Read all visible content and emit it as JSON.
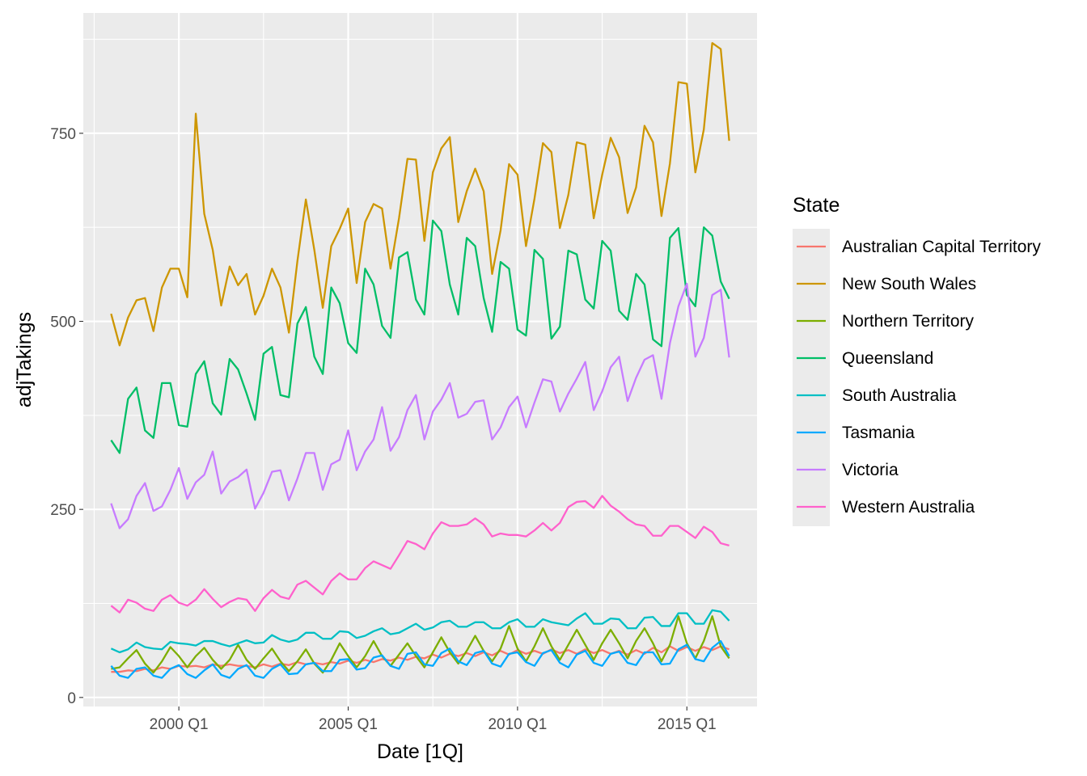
{
  "chart_data": {
    "type": "line",
    "xlabel": "Date [1Q]",
    "ylabel": "adjTakings",
    "x_start": "1998 Q1",
    "x_end": "2016 Q2",
    "x_ticks": [
      "2000 Q1",
      "2005 Q1",
      "2010 Q1",
      "2015 Q1"
    ],
    "y_ticks": [
      0,
      250,
      500,
      750
    ],
    "ylim": [
      -12,
      910
    ],
    "grid": true,
    "legend_title": "State",
    "legend_position": "right",
    "series": [
      {
        "name": "Australian Capital Territory",
        "color": "#F8766D",
        "values": [
          34,
          34,
          36,
          35,
          38,
          36,
          40,
          38,
          42,
          41,
          42,
          40,
          44,
          42,
          44,
          42,
          42,
          40,
          44,
          41,
          45,
          43,
          47,
          44,
          46,
          44,
          47,
          45,
          49,
          46,
          50,
          47,
          51,
          49,
          53,
          50,
          54,
          52,
          57,
          53,
          58,
          55,
          59,
          55,
          60,
          56,
          62,
          57,
          63,
          58,
          62,
          58,
          64,
          59,
          63,
          58,
          64,
          59,
          63,
          58,
          62,
          57,
          63,
          58,
          66,
          60,
          68,
          62,
          67,
          62,
          67,
          63,
          68,
          64
        ]
      },
      {
        "name": "New South Wales",
        "color": "#CD9600",
        "values": [
          510,
          468,
          505,
          528,
          531,
          487,
          545,
          570,
          570,
          532,
          776,
          643,
          595,
          521,
          573,
          548,
          563,
          509,
          534,
          570,
          545,
          485,
          580,
          662,
          595,
          518,
          600,
          623,
          650,
          551,
          632,
          656,
          650,
          570,
          637,
          716,
          715,
          607,
          698,
          730,
          745,
          632,
          673,
          703,
          673,
          563,
          621,
          709,
          695,
          600,
          663,
          737,
          725,
          624,
          668,
          738,
          735,
          637,
          695,
          744,
          718,
          644,
          678,
          760,
          738,
          640,
          710,
          818,
          816,
          698,
          755,
          870,
          862,
          740
        ]
      },
      {
        "name": "Northern Territory",
        "color": "#7CAE00",
        "values": [
          38,
          40,
          52,
          63,
          45,
          33,
          48,
          67,
          55,
          40,
          55,
          66,
          50,
          38,
          50,
          70,
          50,
          38,
          52,
          65,
          48,
          35,
          48,
          64,
          45,
          33,
          50,
          72,
          55,
          40,
          55,
          75,
          55,
          42,
          57,
          72,
          55,
          40,
          60,
          80,
          60,
          45,
          62,
          82,
          62,
          48,
          65,
          95,
          65,
          48,
          68,
          92,
          68,
          50,
          70,
          90,
          70,
          50,
          72,
          90,
          72,
          52,
          75,
          92,
          72,
          48,
          70,
          108,
          72,
          52,
          75,
          108,
          68,
          52
        ]
      },
      {
        "name": "Queensland",
        "color": "#00BE67",
        "values": [
          342,
          325,
          397,
          412,
          355,
          345,
          418,
          418,
          362,
          360,
          430,
          447,
          391,
          376,
          450,
          436,
          404,
          369,
          457,
          466,
          402,
          399,
          497,
          519,
          453,
          430,
          545,
          524,
          471,
          458,
          570,
          549,
          494,
          478,
          585,
          592,
          529,
          509,
          634,
          620,
          549,
          509,
          611,
          600,
          531,
          486,
          579,
          570,
          489,
          481,
          595,
          583,
          477,
          493,
          594,
          589,
          529,
          517,
          607,
          594,
          514,
          502,
          563,
          549,
          476,
          467,
          611,
          624,
          535,
          520,
          625,
          614,
          553,
          530
        ]
      },
      {
        "name": "South Australia",
        "color": "#00BFC4",
        "values": [
          65,
          60,
          64,
          73,
          67,
          65,
          64,
          74,
          72,
          71,
          69,
          75,
          75,
          71,
          68,
          72,
          76,
          72,
          73,
          83,
          77,
          74,
          77,
          86,
          86,
          78,
          78,
          88,
          87,
          79,
          82,
          88,
          92,
          84,
          86,
          92,
          98,
          90,
          93,
          100,
          102,
          94,
          94,
          100,
          100,
          92,
          92,
          100,
          104,
          94,
          94,
          104,
          100,
          98,
          96,
          105,
          112,
          98,
          98,
          105,
          104,
          92,
          92,
          106,
          107,
          95,
          95,
          112,
          112,
          98,
          98,
          116,
          114,
          102
        ]
      },
      {
        "name": "Tasmania",
        "color": "#00A9FF",
        "values": [
          42,
          29,
          26,
          38,
          40,
          29,
          26,
          38,
          43,
          31,
          26,
          36,
          44,
          30,
          26,
          38,
          43,
          29,
          26,
          38,
          44,
          31,
          32,
          44,
          46,
          35,
          35,
          50,
          51,
          37,
          39,
          53,
          56,
          42,
          38,
          58,
          60,
          44,
          42,
          59,
          65,
          48,
          43,
          59,
          62,
          45,
          41,
          58,
          60,
          47,
          42,
          59,
          63,
          46,
          40,
          57,
          62,
          46,
          42,
          58,
          61,
          46,
          43,
          60,
          60,
          44,
          45,
          64,
          70,
          51,
          48,
          66,
          75,
          55
        ]
      },
      {
        "name": "Victoria",
        "color": "#C77CFF",
        "values": [
          258,
          225,
          237,
          268,
          285,
          248,
          254,
          276,
          305,
          264,
          286,
          296,
          327,
          271,
          287,
          293,
          303,
          251,
          272,
          300,
          302,
          262,
          291,
          325,
          325,
          276,
          310,
          316,
          355,
          302,
          327,
          343,
          386,
          328,
          346,
          382,
          402,
          343,
          380,
          396,
          418,
          372,
          377,
          393,
          395,
          343,
          359,
          386,
          400,
          359,
          392,
          423,
          420,
          380,
          404,
          424,
          446,
          382,
          407,
          439,
          453,
          394,
          425,
          449,
          455,
          397,
          471,
          520,
          550,
          453,
          478,
          535,
          542,
          452
        ]
      },
      {
        "name": "Western Australia",
        "color": "#FF61CC",
        "values": [
          122,
          113,
          130,
          126,
          118,
          115,
          130,
          136,
          126,
          122,
          130,
          144,
          131,
          120,
          127,
          132,
          130,
          115,
          132,
          143,
          134,
          131,
          150,
          155,
          146,
          137,
          155,
          165,
          157,
          157,
          172,
          181,
          176,
          171,
          189,
          208,
          204,
          197,
          218,
          233,
          228,
          228,
          230,
          238,
          230,
          214,
          218,
          216,
          216,
          214,
          222,
          232,
          222,
          232,
          253,
          260,
          261,
          252,
          268,
          255,
          247,
          237,
          230,
          228,
          215,
          215,
          228,
          228,
          220,
          212,
          227,
          220,
          205,
          202
        ]
      }
    ]
  }
}
